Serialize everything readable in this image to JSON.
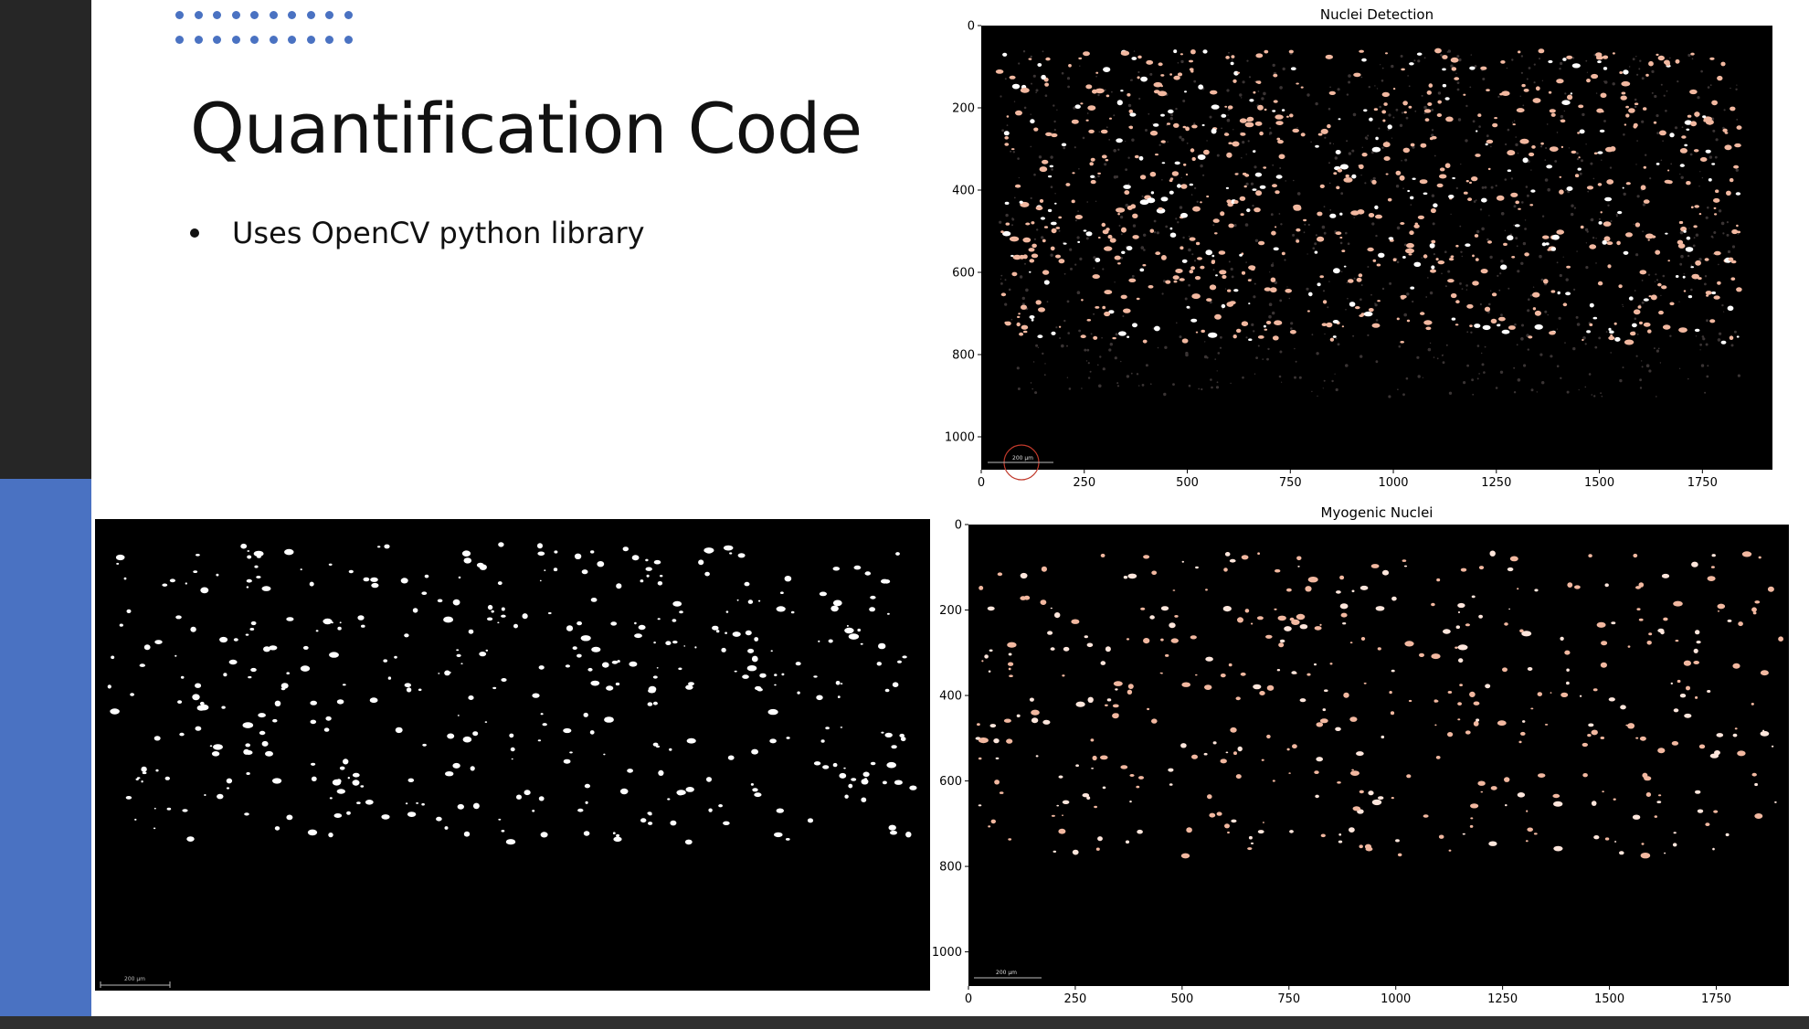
{
  "slide": {
    "title": "Quantification Code",
    "bullets": [
      "Uses OpenCV python library"
    ]
  },
  "images": {
    "threshold_mask": {
      "scale_bar_label": "200 μm"
    },
    "nuclei_detection": {
      "scale_bar_label": "200 μm"
    },
    "myogenic_nuclei": {
      "scale_bar_label": "200 μm"
    }
  },
  "chart_data": [
    {
      "type": "image",
      "title": "Nuclei Detection",
      "xticks": [
        0,
        250,
        500,
        750,
        1000,
        1250,
        1500,
        1750
      ],
      "yticks": [
        0,
        200,
        400,
        600,
        800,
        1000
      ],
      "xlim": [
        0,
        1920
      ],
      "ylim": [
        1080,
        0
      ]
    },
    {
      "type": "image",
      "title": "Myogenic Nuclei",
      "xticks": [
        0,
        250,
        500,
        750,
        1000,
        1250,
        1500,
        1750
      ],
      "yticks": [
        0,
        200,
        400,
        600,
        800,
        1000
      ],
      "xlim": [
        0,
        1920
      ],
      "ylim": [
        1080,
        0
      ]
    }
  ],
  "colors": {
    "accent_blue": "#4a72c2",
    "sidebar_dark": "#262626",
    "nucleus_tint": "#f2b8a0"
  }
}
